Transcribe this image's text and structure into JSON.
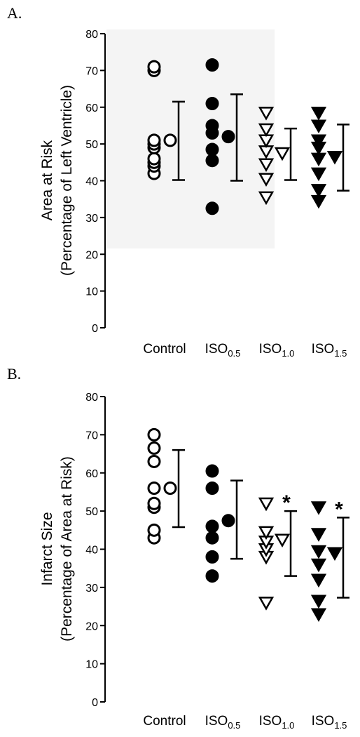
{
  "chart_data": [
    {
      "type": "scatter",
      "panel_label": "A.",
      "title": "",
      "ylabel_line1": "Area at Risk",
      "ylabel_line2": "(Percentage of Left Ventricle)",
      "ylim": [
        0,
        80
      ],
      "yticks": [
        "0",
        "10",
        "20",
        "30",
        "40",
        "50",
        "60",
        "70",
        "80"
      ],
      "categories": [
        {
          "base": "Control",
          "sub": ""
        },
        {
          "base": "ISO",
          "sub": "0.5"
        },
        {
          "base": "ISO",
          "sub": "1.0"
        },
        {
          "base": "ISO",
          "sub": "1.5"
        }
      ],
      "groups": [
        {
          "marker": "circle-open",
          "points": [
            42,
            44,
            45,
            46,
            49,
            50,
            51,
            70,
            71
          ],
          "mean": 51,
          "upper": 61.5,
          "lower": 40.2,
          "annotation": ""
        },
        {
          "marker": "circle-filled",
          "points": [
            32.5,
            45.5,
            48.5,
            53,
            55,
            61,
            71.5
          ],
          "mean": 52,
          "upper": 63.5,
          "lower": 40,
          "annotation": ""
        },
        {
          "marker": "triangle-open",
          "points": [
            35.5,
            40.5,
            44.5,
            48,
            51,
            54,
            58.5
          ],
          "mean": 47.5,
          "upper": 54.2,
          "lower": 40.2,
          "annotation": ""
        },
        {
          "marker": "triangle-filled",
          "points": [
            34.5,
            37.5,
            42,
            46,
            49,
            51,
            55,
            58.5
          ],
          "mean": 46.5,
          "upper": 55.3,
          "lower": 37.3,
          "annotation": ""
        }
      ]
    },
    {
      "type": "scatter",
      "panel_label": "B.",
      "title": "",
      "ylabel_line1": "Infarct Size",
      "ylabel_line2": "(Percentage of Area at Risk)",
      "ylim": [
        0,
        80
      ],
      "yticks": [
        "0",
        "10",
        "20",
        "30",
        "40",
        "50",
        "60",
        "70",
        "80"
      ],
      "categories": [
        {
          "base": "Control",
          "sub": ""
        },
        {
          "base": "ISO",
          "sub": "0.5"
        },
        {
          "base": "ISO",
          "sub": "1.0"
        },
        {
          "base": "ISO",
          "sub": "1.5"
        }
      ],
      "groups": [
        {
          "marker": "circle-open",
          "points": [
            43,
            45,
            51,
            52,
            56,
            63,
            66.5,
            70
          ],
          "mean": 56,
          "upper": 66,
          "lower": 45.8,
          "annotation": ""
        },
        {
          "marker": "circle-filled",
          "points": [
            33,
            38,
            43,
            46,
            56,
            60.5
          ],
          "mean": 47.5,
          "upper": 58,
          "lower": 37.5,
          "annotation": ""
        },
        {
          "marker": "triangle-open",
          "points": [
            26,
            38,
            40,
            42,
            44.5,
            52
          ],
          "mean": 42.5,
          "upper": 50,
          "lower": 33,
          "annotation": "*"
        },
        {
          "marker": "triangle-filled",
          "points": [
            23,
            26.5,
            32,
            36,
            39.5,
            44,
            51
          ],
          "mean": 39,
          "upper": 48.3,
          "lower": 27.3,
          "annotation": "*"
        }
      ]
    }
  ]
}
